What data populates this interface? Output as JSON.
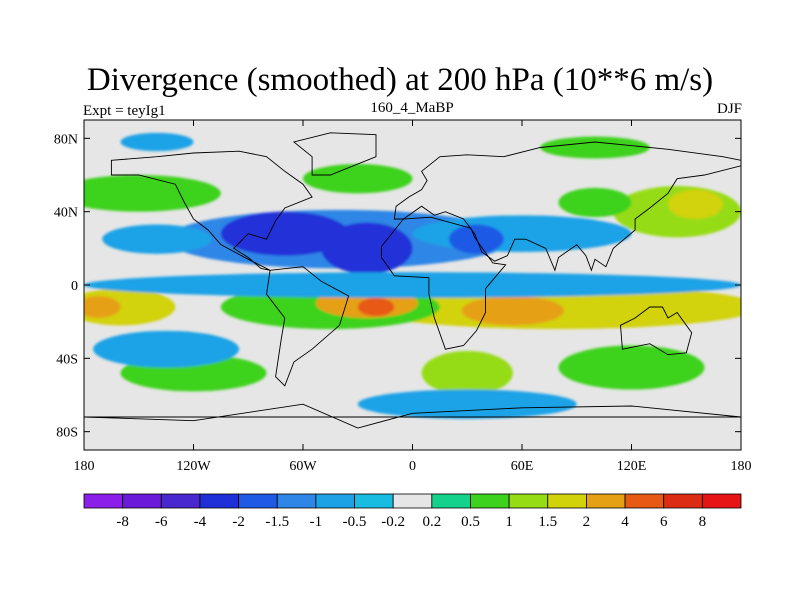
{
  "chart_data": {
    "type": "heatmap",
    "title": "Divergence (smoothed) at 200 hPa (10**6 m/s)",
    "left_label": "Expt = teyIg1",
    "center_label": "160_4_MaBP",
    "right_label": "DJF",
    "xlim": [
      -180,
      180
    ],
    "ylim": [
      -90,
      90
    ],
    "x_ticks": [
      {
        "value": -180,
        "label": "180"
      },
      {
        "value": -120,
        "label": "120W"
      },
      {
        "value": -60,
        "label": "60W"
      },
      {
        "value": 0,
        "label": "0"
      },
      {
        "value": 60,
        "label": "60E"
      },
      {
        "value": 120,
        "label": "120E"
      },
      {
        "value": 180,
        "label": "180"
      }
    ],
    "y_ticks": [
      {
        "value": 80,
        "label": "80N"
      },
      {
        "value": 40,
        "label": "40N"
      },
      {
        "value": 0,
        "label": "0"
      },
      {
        "value": -40,
        "label": "40S"
      },
      {
        "value": -80,
        "label": "80S"
      }
    ],
    "colorbar": {
      "labels": [
        "-8",
        "-6",
        "-4",
        "-2",
        "-1.5",
        "-1",
        "-0.5",
        "-0.2",
        "0.2",
        "0.5",
        "1",
        "1.5",
        "2",
        "4",
        "6",
        "8"
      ],
      "levels": [
        -8,
        -6,
        -4,
        -2,
        -1.5,
        -1,
        -0.5,
        -0.2,
        0.2,
        0.5,
        1,
        1.5,
        2,
        4,
        6,
        8
      ],
      "colors": [
        "#8b1ee8",
        "#6a1ad8",
        "#4a28d0",
        "#2030d8",
        "#1e5ae6",
        "#2e86e6",
        "#1ea2e6",
        "#18bce0",
        "#e6e6e6",
        "#14d28c",
        "#3cd21e",
        "#96dc14",
        "#d2d20a",
        "#e6a014",
        "#e65a14",
        "#dc2d14",
        "#e61414"
      ]
    },
    "background_color": "#e6e6e6",
    "features": [
      {
        "name": "north-pacific-band",
        "lon": -150,
        "lat": 50,
        "rx": 45,
        "ry": 10,
        "value": 0.7
      },
      {
        "name": "north-atlantic-band",
        "lon": -30,
        "lat": 58,
        "rx": 30,
        "ry": 8,
        "value": 0.7
      },
      {
        "name": "east-asia-north",
        "lon": 145,
        "lat": 40,
        "rx": 35,
        "ry": 14,
        "value": 1.2
      },
      {
        "name": "east-asia-north-core",
        "lon": 155,
        "lat": 44,
        "rx": 15,
        "ry": 8,
        "value": 1.7
      },
      {
        "name": "west-pacific-mid",
        "lon": 100,
        "lat": 45,
        "rx": 20,
        "ry": 8,
        "value": 0.7
      },
      {
        "name": "northern-midlat-convergence",
        "lon": -40,
        "lat": 25,
        "rx": 95,
        "ry": 16,
        "value": -1.2
      },
      {
        "name": "central-america-convergence",
        "lon": -70,
        "lat": 28,
        "rx": 35,
        "ry": 12,
        "value": -2.5
      },
      {
        "name": "africa-convergence",
        "lon": -25,
        "lat": 20,
        "rx": 25,
        "ry": 14,
        "value": -2.5
      },
      {
        "name": "asia-convergence",
        "lon": 60,
        "lat": 28,
        "rx": 60,
        "ry": 10,
        "value": -0.8
      },
      {
        "name": "arabia-convergence",
        "lon": 35,
        "lat": 25,
        "rx": 15,
        "ry": 8,
        "value": -1.7
      },
      {
        "name": "east-pacific-convergence",
        "lon": -140,
        "lat": 25,
        "rx": 30,
        "ry": 8,
        "value": -0.7
      },
      {
        "name": "tropical-belt-east",
        "lon": 80,
        "lat": -12,
        "rx": 110,
        "ry": 12,
        "value": 1.7
      },
      {
        "name": "indian-ocean-core",
        "lon": 55,
        "lat": -14,
        "rx": 28,
        "ry": 8,
        "value": 3.0
      },
      {
        "name": "tropical-belt-west",
        "lon": -160,
        "lat": -12,
        "rx": 30,
        "ry": 10,
        "value": 1.7
      },
      {
        "name": "west-pacific-core",
        "lon": -172,
        "lat": -12,
        "rx": 12,
        "ry": 6,
        "value": 3.0
      },
      {
        "name": "south-america-div",
        "lon": -45,
        "lat": -12,
        "rx": 60,
        "ry": 12,
        "value": 0.7
      },
      {
        "name": "south-atlantic-div",
        "lon": -25,
        "lat": -10,
        "rx": 28,
        "ry": 8,
        "value": 3.0
      },
      {
        "name": "south-atlantic-core",
        "lon": -20,
        "lat": -12,
        "rx": 10,
        "ry": 5,
        "value": 5.0
      },
      {
        "name": "equatorial-convergence",
        "lon": 0,
        "lat": 0,
        "rx": 180,
        "ry": 7,
        "value": -0.7
      },
      {
        "name": "southern-midlat-pacific",
        "lon": -120,
        "lat": -48,
        "rx": 40,
        "ry": 10,
        "value": 0.7
      },
      {
        "name": "south-atlantic-mid",
        "lon": 30,
        "lat": -48,
        "rx": 25,
        "ry": 12,
        "value": 1.2
      },
      {
        "name": "southern-indian-mid",
        "lon": 120,
        "lat": -45,
        "rx": 40,
        "ry": 12,
        "value": 0.7
      },
      {
        "name": "southern-ocean-conv",
        "lon": 30,
        "lat": -65,
        "rx": 60,
        "ry": 8,
        "value": -0.7
      },
      {
        "name": "south-pacific-conv",
        "lon": -135,
        "lat": -35,
        "rx": 40,
        "ry": 10,
        "value": -0.7
      },
      {
        "name": "arctic-north",
        "lon": -140,
        "lat": 78,
        "rx": 20,
        "ry": 5,
        "value": -0.7
      },
      {
        "name": "north-siberia",
        "lon": 100,
        "lat": 75,
        "rx": 30,
        "ry": 6,
        "value": 0.7
      }
    ],
    "continent_outlines": [
      {
        "name": "north-america",
        "points": [
          [
            -165,
            68
          ],
          [
            -140,
            70
          ],
          [
            -120,
            72
          ],
          [
            -95,
            73
          ],
          [
            -80,
            70
          ],
          [
            -70,
            62
          ],
          [
            -60,
            55
          ],
          [
            -55,
            48
          ],
          [
            -70,
            42
          ],
          [
            -75,
            35
          ],
          [
            -80,
            25
          ],
          [
            -90,
            28
          ],
          [
            -98,
            20
          ],
          [
            -90,
            15
          ],
          [
            -83,
            9
          ],
          [
            -78,
            8
          ],
          [
            -90,
            14
          ],
          [
            -105,
            22
          ],
          [
            -112,
            30
          ],
          [
            -120,
            36
          ],
          [
            -125,
            45
          ],
          [
            -130,
            55
          ],
          [
            -150,
            60
          ],
          [
            -165,
            60
          ]
        ]
      },
      {
        "name": "south-america",
        "points": [
          [
            -78,
            8
          ],
          [
            -60,
            10
          ],
          [
            -50,
            2
          ],
          [
            -35,
            -6
          ],
          [
            -40,
            -22
          ],
          [
            -55,
            -35
          ],
          [
            -65,
            -42
          ],
          [
            -70,
            -55
          ],
          [
            -75,
            -50
          ],
          [
            -72,
            -30
          ],
          [
            -70,
            -18
          ],
          [
            -80,
            -5
          ]
        ]
      },
      {
        "name": "greenland",
        "points": [
          [
            -55,
            60
          ],
          [
            -45,
            60
          ],
          [
            -20,
            70
          ],
          [
            -20,
            82
          ],
          [
            -45,
            83
          ],
          [
            -65,
            78
          ],
          [
            -55,
            70
          ]
        ]
      },
      {
        "name": "eurasia",
        "points": [
          [
            -10,
            36
          ],
          [
            -9,
            43
          ],
          [
            -2,
            48
          ],
          [
            5,
            52
          ],
          [
            8,
            57
          ],
          [
            5,
            62
          ],
          [
            15,
            70
          ],
          [
            30,
            71
          ],
          [
            50,
            70
          ],
          [
            70,
            75
          ],
          [
            100,
            78
          ],
          [
            140,
            74
          ],
          [
            170,
            70
          ],
          [
            180,
            68
          ],
          [
            180,
            65
          ],
          [
            160,
            60
          ],
          [
            145,
            58
          ],
          [
            140,
            50
          ],
          [
            130,
            42
          ],
          [
            122,
            36
          ],
          [
            122,
            30
          ],
          [
            110,
            20
          ],
          [
            106,
            10
          ],
          [
            100,
            14
          ],
          [
            98,
            8
          ],
          [
            95,
            16
          ],
          [
            90,
            22
          ],
          [
            80,
            15
          ],
          [
            78,
            8
          ],
          [
            73,
            20
          ],
          [
            62,
            25
          ],
          [
            56,
            25
          ],
          [
            52,
            16
          ],
          [
            45,
            13
          ],
          [
            38,
            18
          ],
          [
            34,
            28
          ],
          [
            28,
            36
          ],
          [
            18,
            40
          ],
          [
            12,
            38
          ],
          [
            5,
            43
          ],
          [
            -5,
            36
          ]
        ]
      },
      {
        "name": "africa",
        "points": [
          [
            -17,
            21
          ],
          [
            -5,
            36
          ],
          [
            10,
            37
          ],
          [
            32,
            31
          ],
          [
            34,
            26
          ],
          [
            44,
            12
          ],
          [
            51,
            11
          ],
          [
            40,
            -2
          ],
          [
            40,
            -15
          ],
          [
            35,
            -25
          ],
          [
            28,
            -33
          ],
          [
            18,
            -35
          ],
          [
            12,
            -18
          ],
          [
            9,
            -5
          ],
          [
            9,
            4
          ],
          [
            -10,
            5
          ],
          [
            -17,
            15
          ]
        ]
      },
      {
        "name": "australia",
        "points": [
          [
            114,
            -22
          ],
          [
            122,
            -18
          ],
          [
            130,
            -12
          ],
          [
            137,
            -12
          ],
          [
            140,
            -18
          ],
          [
            145,
            -15
          ],
          [
            153,
            -26
          ],
          [
            150,
            -37
          ],
          [
            140,
            -38
          ],
          [
            130,
            -32
          ],
          [
            115,
            -35
          ]
        ]
      },
      {
        "name": "antarctica",
        "points": [
          [
            -180,
            -72
          ],
          [
            -120,
            -74
          ],
          [
            -60,
            -65
          ],
          [
            -30,
            -78
          ],
          [
            0,
            -70
          ],
          [
            60,
            -67
          ],
          [
            120,
            -66
          ],
          [
            180,
            -72
          ]
        ]
      }
    ]
  }
}
